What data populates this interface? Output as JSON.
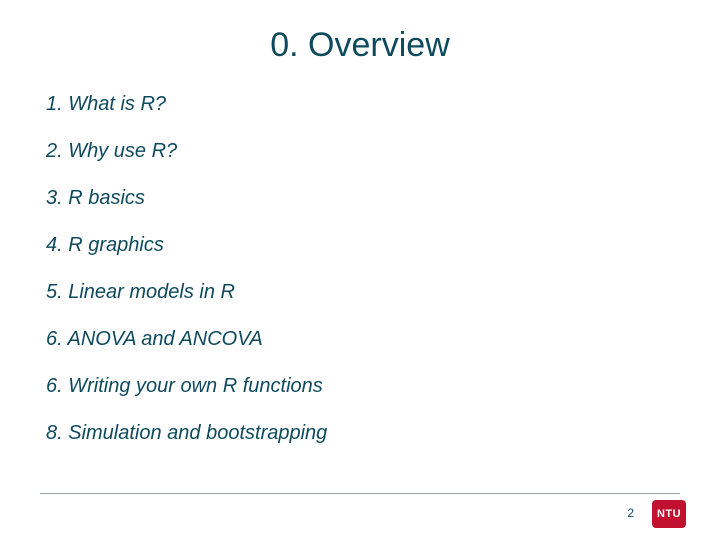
{
  "slide": {
    "title": "0. Overview",
    "title_color": "#0e4a5d",
    "title_fontsize": 34,
    "items": [
      "1. What is R?",
      "2. Why use R?",
      "3. R basics",
      "4. R graphics",
      "5. Linear models in R",
      "6. ANOVA and ANCOVA",
      "6. Writing your own R functions",
      "8. Simulation and bootstrapping"
    ],
    "item_color": "#0e4a5d",
    "item_fontsize": 20,
    "rule_color": "#9aa0a6",
    "page_number": "2",
    "page_number_color": "#0e4a5d",
    "page_number_fontsize": 12,
    "logo": {
      "text": "NTU",
      "bg": "#c21030",
      "fontsize": 11
    },
    "background_color": "#ffffff"
  }
}
